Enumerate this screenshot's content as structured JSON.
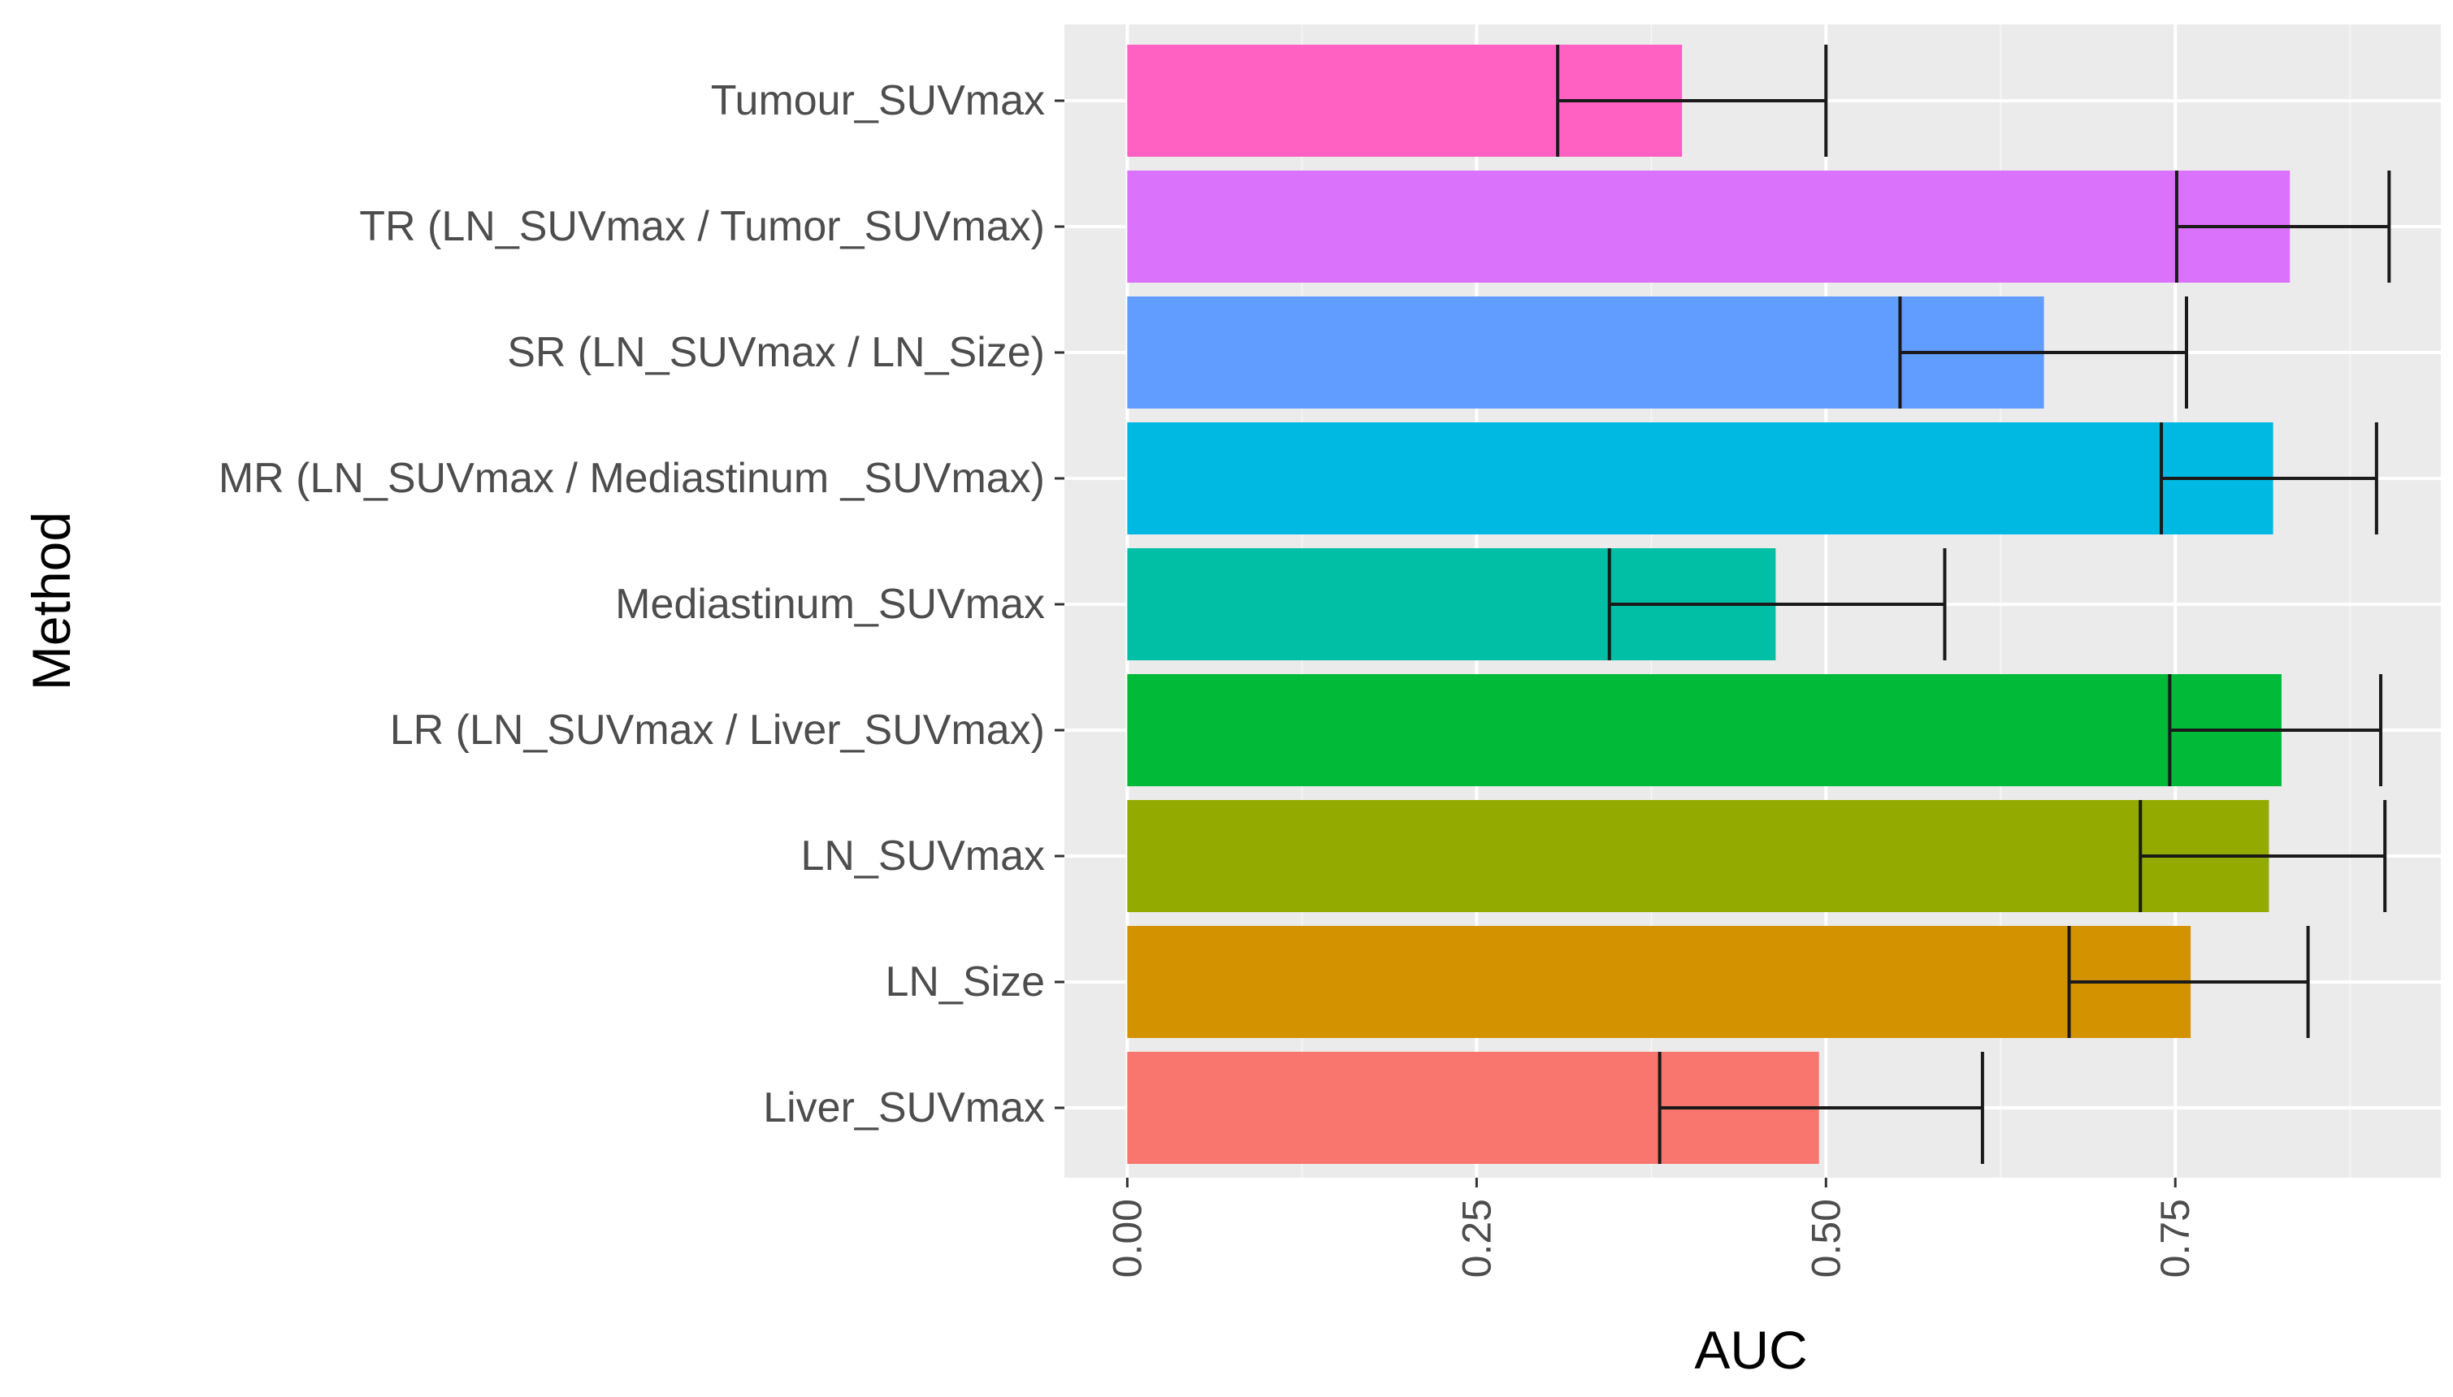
{
  "chart_data": {
    "type": "bar",
    "orientation": "horizontal",
    "xlabel": "AUC",
    "ylabel": "Method",
    "xlim": [
      -0.045,
      0.94
    ],
    "xticks": [
      {
        "value": 0.0,
        "label": "0.00"
      },
      {
        "value": 0.25,
        "label": "0.25"
      },
      {
        "value": 0.5,
        "label": "0.50"
      },
      {
        "value": 0.75,
        "label": "0.75"
      }
    ],
    "minor_gridlines": [
      0.125,
      0.375,
      0.625,
      0.875
    ],
    "bars": [
      {
        "category": "Tumour_SUVmax",
        "value": 0.397,
        "error_low": 0.308,
        "error_high": 0.5,
        "color": "#FF61C3"
      },
      {
        "category": "TR (LN_SUVmax / Tumor_SUVmax)",
        "value": 0.832,
        "error_low": 0.751,
        "error_high": 0.903,
        "color": "#DB72FB"
      },
      {
        "category": "SR (LN_SUVmax / LN_Size)",
        "value": 0.656,
        "error_low": 0.553,
        "error_high": 0.758,
        "color": "#619CFF"
      },
      {
        "category": "MR (LN_SUVmax / Mediastinum _SUVmax)",
        "value": 0.82,
        "error_low": 0.74,
        "error_high": 0.894,
        "color": "#00B9E3"
      },
      {
        "category": "Mediastinum_SUVmax",
        "value": 0.464,
        "error_low": 0.345,
        "error_high": 0.585,
        "color": "#00BFA4"
      },
      {
        "category": "LR (LN_SUVmax / Liver_SUVmax)",
        "value": 0.826,
        "error_low": 0.746,
        "error_high": 0.897,
        "color": "#00BA38"
      },
      {
        "category": "LN_SUVmax",
        "value": 0.817,
        "error_low": 0.725,
        "error_high": 0.9,
        "color": "#93AA00"
      },
      {
        "category": "LN_Size",
        "value": 0.761,
        "error_low": 0.674,
        "error_high": 0.845,
        "color": "#D39200"
      },
      {
        "category": "Liver_SUVmax",
        "value": 0.495,
        "error_low": 0.381,
        "error_high": 0.612,
        "color": "#F8766D"
      }
    ],
    "panel_background": "#EBEBEB",
    "gridlines": true,
    "legend": "none"
  }
}
